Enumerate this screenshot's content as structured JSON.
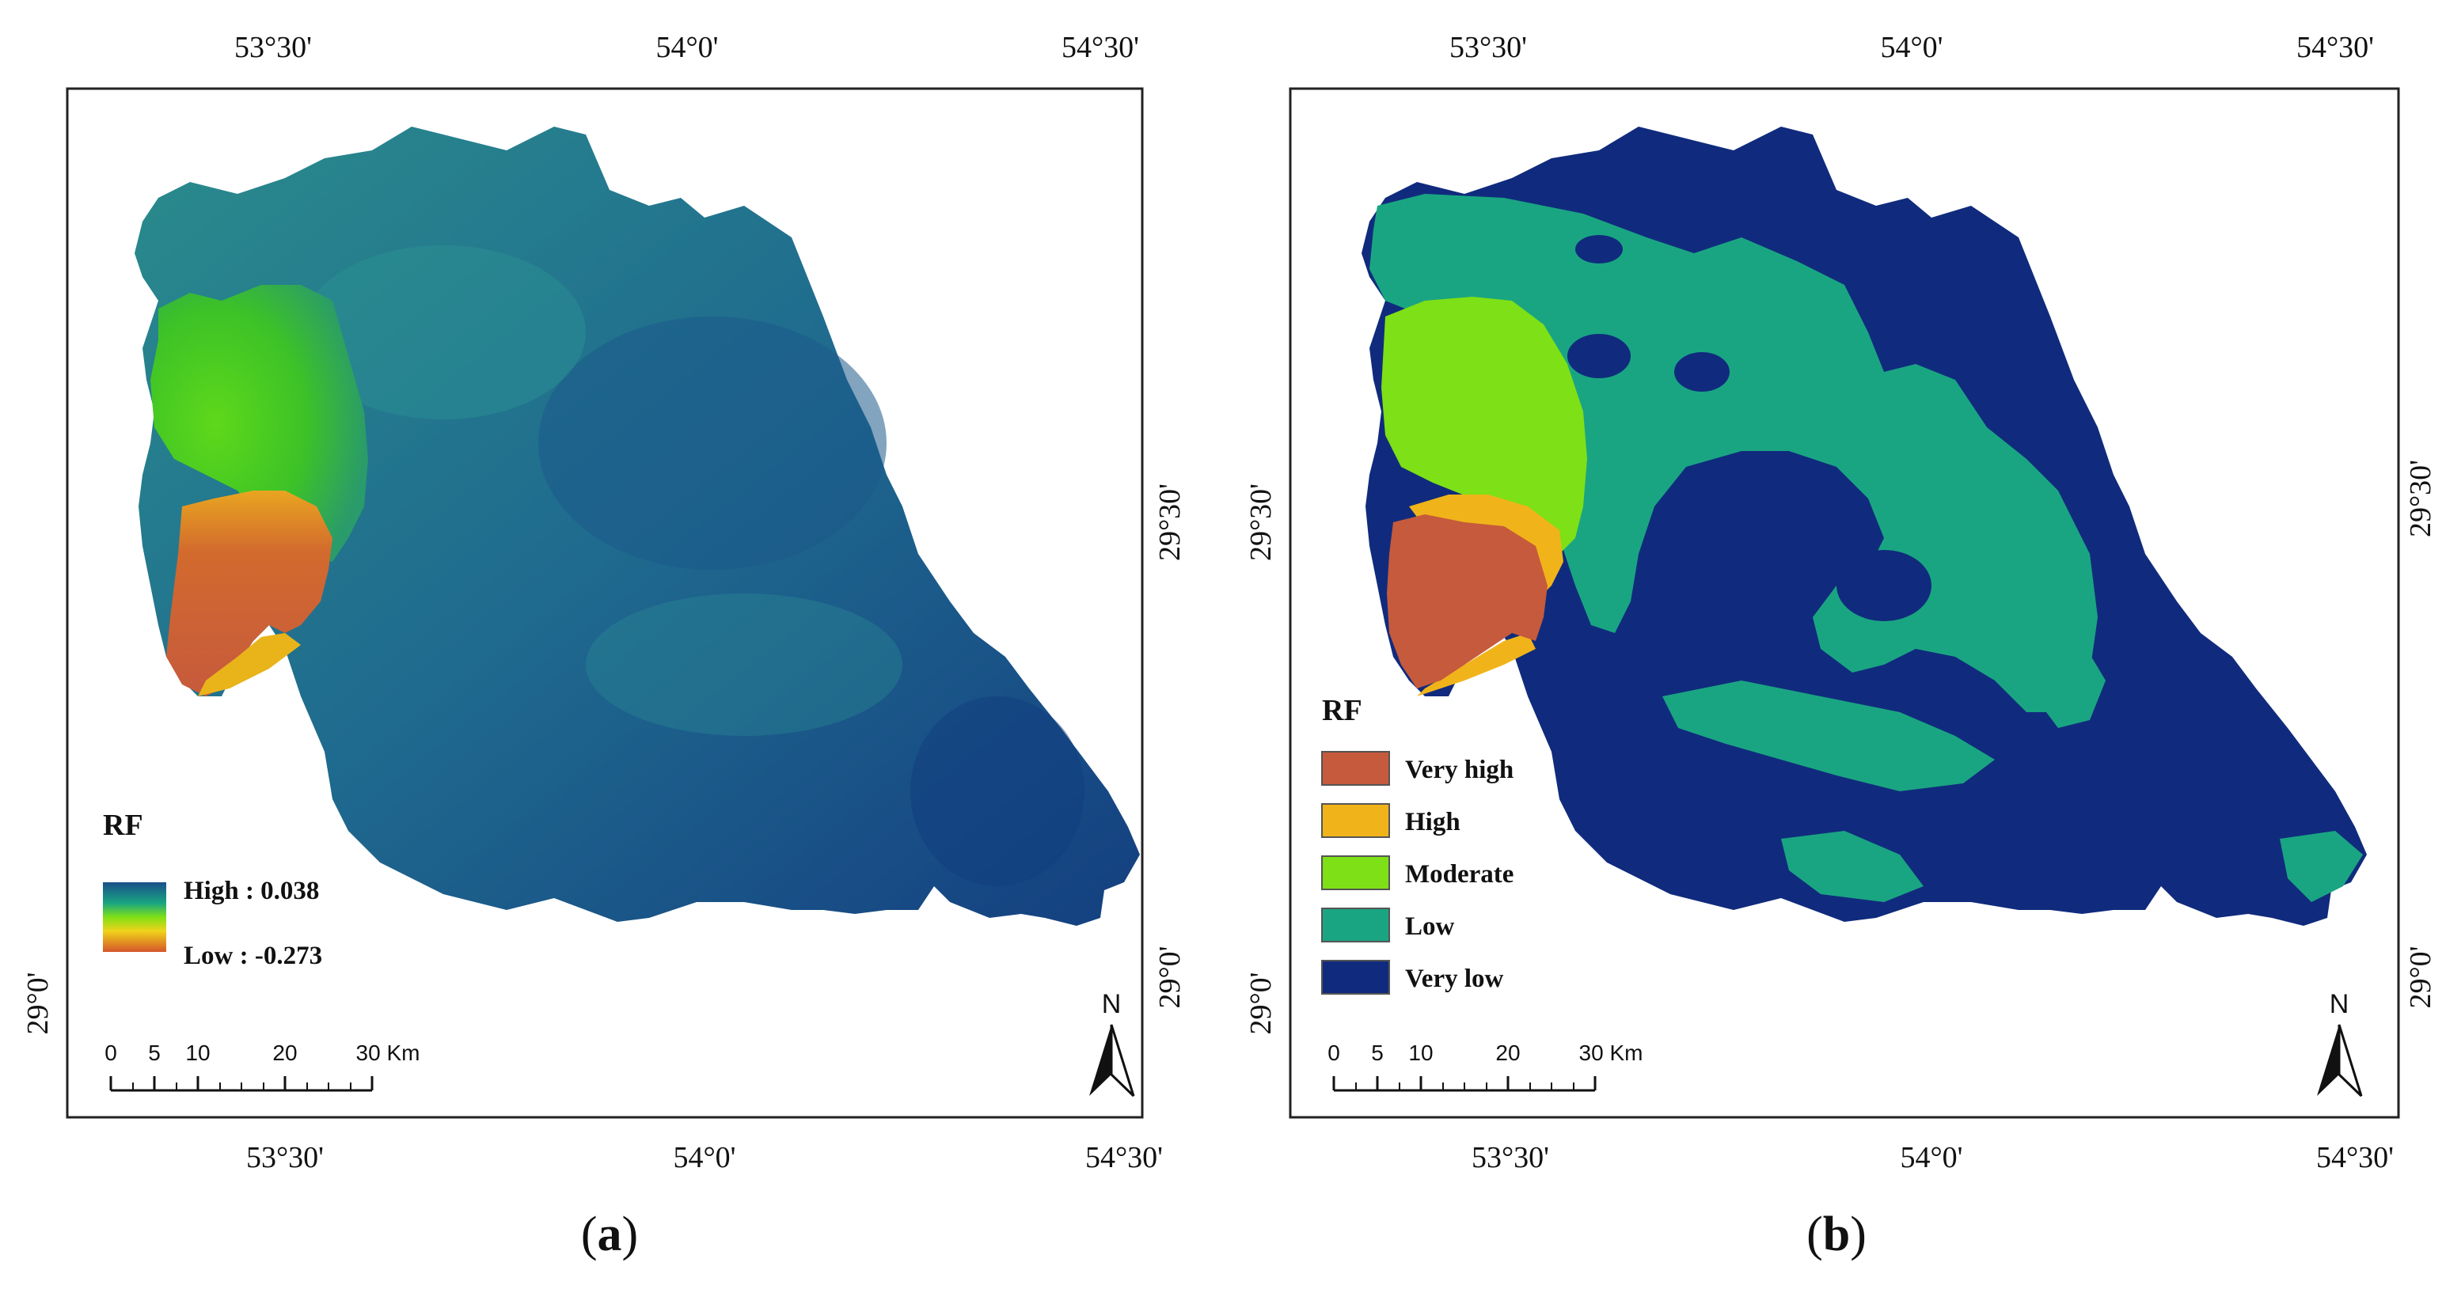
{
  "panels": [
    {
      "label_open": "(",
      "label_letter": "a",
      "label_close": ")",
      "top_ticks": [
        "53°30'",
        "54°0'",
        "54°30'"
      ],
      "bottom_ticks": [
        "53°30'",
        "54°0'",
        "54°30'"
      ],
      "left_ticks": [
        "29°0'"
      ],
      "right_ticks": [
        "29°30'",
        "29°0'"
      ],
      "legend": {
        "title": "RF",
        "high_label": "High : 0.038",
        "low_label": "Low : -0.273"
      },
      "north": "N",
      "scale_labels": [
        "0",
        "5",
        "10",
        "20",
        "30 Km"
      ]
    },
    {
      "label_open": "(",
      "label_letter": "b",
      "label_close": ")",
      "top_ticks": [
        "53°30'",
        "54°0'",
        "54°30'"
      ],
      "bottom_ticks": [
        "53°30'",
        "54°0'",
        "54°30'"
      ],
      "left_ticks": [
        "29°30'",
        "29°0'"
      ],
      "right_ticks": [
        "29°30'",
        "29°0'"
      ],
      "legend": {
        "title": "RF",
        "classes": [
          {
            "label": "Very high",
            "color": "#c65a3c"
          },
          {
            "label": "High",
            "color": "#f0b41a"
          },
          {
            "label": "Moderate",
            "color": "#7ee016"
          },
          {
            "label": "Low",
            "color": "#1aa582"
          },
          {
            "label": "Very low",
            "color": "#102b7d"
          }
        ]
      },
      "north": "N",
      "scale_labels": [
        "0",
        "5",
        "10",
        "20",
        "30 Km"
      ]
    }
  ],
  "left_tick_a_extra": "29°30'",
  "colors": {
    "very_high": "#c65a3c",
    "high": "#f0b41a",
    "moderate": "#7ee016",
    "low": "#1aa582",
    "very_low": "#102b7d",
    "continuous_base": "#1f6c8e"
  }
}
